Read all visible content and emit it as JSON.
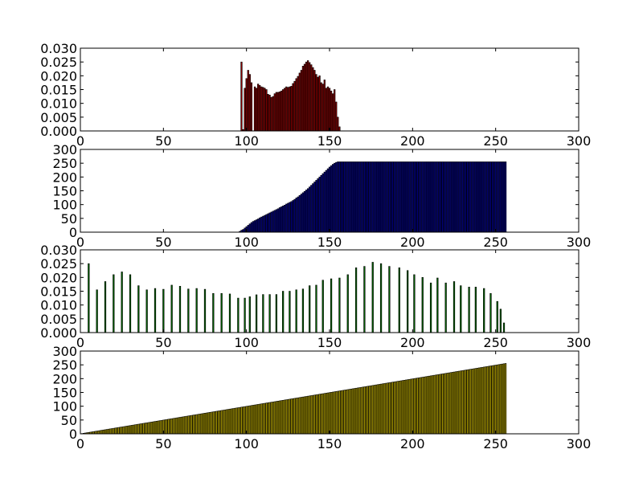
{
  "figure": {
    "background": "#ffffff",
    "bar_edge_color": "#000000"
  },
  "chart_data": [
    {
      "type": "bar",
      "title": "",
      "xlabel": "",
      "ylabel": "",
      "xlim": [
        0,
        300
      ],
      "ylim": [
        0,
        0.03
      ],
      "xticks": [
        0,
        50,
        100,
        150,
        200,
        250,
        300
      ],
      "yticks": [
        0.0,
        0.005,
        0.01,
        0.015,
        0.02,
        0.025,
        0.03
      ],
      "xtick_labels": [
        "0",
        "50",
        "100",
        "150",
        "200",
        "250",
        "300"
      ],
      "ytick_labels": [
        "0.000",
        "0.005",
        "0.010",
        "0.015",
        "0.020",
        "0.025",
        "0.030"
      ],
      "grid": false,
      "bar_color": "#8b0000",
      "bar_width": 0.8,
      "series": [
        {
          "x": [
            97,
            98,
            99,
            100,
            101,
            102,
            103,
            104,
            105,
            106,
            107,
            108,
            109,
            110,
            111,
            112,
            113,
            114,
            115,
            116,
            117,
            118,
            119,
            120,
            121,
            122,
            123,
            124,
            125,
            126,
            127,
            128,
            129,
            130,
            131,
            132,
            133,
            134,
            135,
            136,
            137,
            138,
            139,
            140,
            141,
            142,
            143,
            144,
            145,
            146,
            147,
            148,
            149,
            150,
            151,
            152,
            153,
            154,
            155,
            156
          ],
          "values": [
            0.025,
            0.0005,
            0.0155,
            0.019,
            0.022,
            0.0205,
            0.0175,
            0.0,
            0.016,
            0.0155,
            0.017,
            0.0165,
            0.016,
            0.0158,
            0.0155,
            0.015,
            0.0133,
            0.013,
            0.0122,
            0.0125,
            0.0135,
            0.014,
            0.014,
            0.0142,
            0.0145,
            0.015,
            0.0155,
            0.016,
            0.0158,
            0.016,
            0.0162,
            0.0172,
            0.018,
            0.019,
            0.0198,
            0.021,
            0.022,
            0.0235,
            0.0242,
            0.025,
            0.0255,
            0.0248,
            0.024,
            0.023,
            0.022,
            0.0205,
            0.0195,
            0.02,
            0.0175,
            0.017,
            0.0185,
            0.0155,
            0.016,
            0.0155,
            0.0145,
            0.0135,
            0.015,
            0.0105,
            0.005,
            0.0015
          ]
        }
      ]
    },
    {
      "type": "bar",
      "title": "",
      "xlabel": "",
      "ylabel": "",
      "xlim": [
        0,
        300
      ],
      "ylim": [
        0,
        300
      ],
      "xticks": [
        0,
        50,
        100,
        150,
        200,
        250,
        300
      ],
      "yticks": [
        0,
        50,
        100,
        150,
        200,
        250,
        300
      ],
      "xtick_labels": [
        "0",
        "50",
        "100",
        "150",
        "200",
        "250",
        "300"
      ],
      "ytick_labels": [
        "0",
        "50",
        "100",
        "150",
        "200",
        "250",
        "300"
      ],
      "grid": false,
      "bar_color": "#00008b",
      "bar_width": 0.8,
      "series": [
        {
          "x": [
            96,
            97,
            98,
            99,
            100,
            101,
            102,
            103,
            104,
            105,
            106,
            107,
            108,
            109,
            110,
            111,
            112,
            113,
            114,
            115,
            116,
            117,
            118,
            119,
            120,
            121,
            122,
            123,
            124,
            125,
            126,
            127,
            128,
            129,
            130,
            131,
            132,
            133,
            134,
            135,
            136,
            137,
            138,
            139,
            140,
            141,
            142,
            143,
            144,
            145,
            146,
            147,
            148,
            149,
            150,
            151,
            152,
            153,
            154,
            155,
            156
          ],
          "values": [
            3,
            7,
            10,
            15,
            20,
            25,
            30,
            35,
            39,
            42,
            45,
            48,
            52,
            55,
            58,
            61,
            64,
            67,
            70,
            73,
            76,
            79,
            82,
            85,
            89,
            92,
            95,
            98,
            102,
            105,
            108,
            111,
            115,
            119,
            124,
            128,
            133,
            138,
            143,
            148,
            153,
            158,
            164,
            170,
            176,
            182,
            188,
            194,
            200,
            206,
            212,
            218,
            224,
            230,
            236,
            241,
            246,
            250,
            253,
            255,
            255
          ],
          "fill_to": 256,
          "fill_value": 255
        }
      ]
    },
    {
      "type": "bar",
      "title": "",
      "xlabel": "",
      "ylabel": "",
      "xlim": [
        0,
        300
      ],
      "ylim": [
        0,
        0.03
      ],
      "xticks": [
        0,
        50,
        100,
        150,
        200,
        250,
        300
      ],
      "yticks": [
        0.0,
        0.005,
        0.01,
        0.015,
        0.02,
        0.025,
        0.03
      ],
      "xtick_labels": [
        "0",
        "50",
        "100",
        "150",
        "200",
        "250",
        "300"
      ],
      "ytick_labels": [
        "0.000",
        "0.005",
        "0.010",
        "0.015",
        "0.020",
        "0.025",
        "0.030"
      ],
      "grid": false,
      "bar_color": "#006400",
      "bar_width": 0.8,
      "series": [
        {
          "x": [
            5,
            10,
            15,
            20,
            25,
            30,
            35,
            40,
            45,
            50,
            55,
            60,
            65,
            70,
            75,
            80,
            85,
            90,
            95,
            99,
            102,
            106,
            110,
            114,
            118,
            122,
            126,
            130,
            134,
            138,
            142,
            146,
            151,
            156,
            161,
            166,
            171,
            176,
            181,
            186,
            192,
            197,
            201,
            206,
            211,
            215,
            220,
            225,
            229,
            234,
            238,
            243,
            247,
            251,
            253,
            255
          ],
          "values": [
            0.025,
            0.0155,
            0.0185,
            0.021,
            0.022,
            0.021,
            0.017,
            0.0155,
            0.016,
            0.0157,
            0.0172,
            0.0168,
            0.0158,
            0.016,
            0.0157,
            0.0142,
            0.0142,
            0.014,
            0.0125,
            0.0125,
            0.013,
            0.0137,
            0.0138,
            0.0138,
            0.0138,
            0.015,
            0.015,
            0.0155,
            0.0158,
            0.017,
            0.0172,
            0.019,
            0.0195,
            0.0198,
            0.021,
            0.0235,
            0.024,
            0.0255,
            0.025,
            0.024,
            0.0235,
            0.0225,
            0.021,
            0.02,
            0.018,
            0.0198,
            0.018,
            0.0185,
            0.017,
            0.0165,
            0.0165,
            0.016,
            0.0142,
            0.0113,
            0.0085,
            0.0035
          ]
        }
      ]
    },
    {
      "type": "bar",
      "title": "",
      "xlabel": "",
      "ylabel": "",
      "xlim": [
        0,
        300
      ],
      "ylim": [
        0,
        300
      ],
      "xticks": [
        0,
        50,
        100,
        150,
        200,
        250,
        300
      ],
      "yticks": [
        0,
        50,
        100,
        150,
        200,
        250,
        300
      ],
      "xtick_labels": [
        "0",
        "50",
        "100",
        "150",
        "200",
        "250",
        "300"
      ],
      "ytick_labels": [
        "0",
        "50",
        "100",
        "150",
        "200",
        "250",
        "300"
      ],
      "grid": false,
      "bar_color": "#b8a600",
      "bar_width": 0.8,
      "series": [
        {
          "x_from": 1,
          "x_to": 256,
          "linear_from": [
            1,
            1
          ],
          "linear_to": [
            256,
            255
          ],
          "note_free": true
        }
      ]
    }
  ]
}
